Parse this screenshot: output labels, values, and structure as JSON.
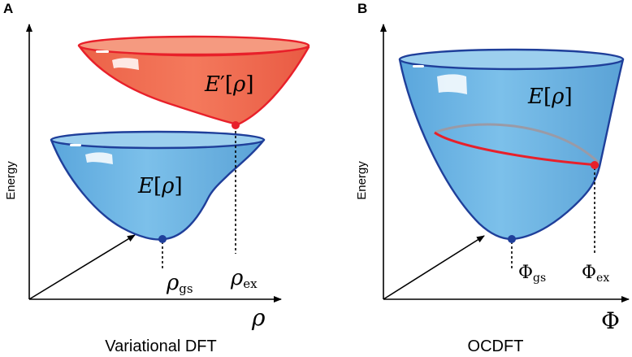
{
  "panels": [
    {
      "letter": "A",
      "y_axis_label": "Energy",
      "x_axis_symbol": "ρ",
      "caption": "Variational DFT",
      "upper_surface": {
        "label_E": "E",
        "label_prime": "′",
        "label_open": "[",
        "label_var": "ρ",
        "label_close": "]"
      },
      "lower_surface": {
        "label_E": "E",
        "label_open": "[",
        "label_var": "ρ",
        "label_close": "]"
      },
      "ground_marker": {
        "symbol": "ρ",
        "subscript": "gs"
      },
      "excited_marker": {
        "symbol": "ρ",
        "subscript": "ex"
      }
    },
    {
      "letter": "B",
      "y_axis_label": "Energy",
      "x_axis_symbol": "Φ",
      "caption": "OCDFT",
      "surface": {
        "label_E": "E",
        "label_open": "[",
        "label_var": "ρ",
        "label_close": "]"
      },
      "ground_marker": {
        "symbol": "Φ",
        "subscript": "gs"
      },
      "excited_marker": {
        "symbol": "Φ",
        "subscript": "ex"
      }
    }
  ],
  "colors": {
    "blue_fill": "#6db4e4",
    "blue_edge": "#1f3f9a",
    "red_fill": "#f06a4e",
    "red_edge": "#e8202a",
    "constraint_line": "#e8202a",
    "gray_line": "#9a9aa6",
    "ground_point": "#1f3f9a",
    "excited_point": "#e8202a"
  }
}
